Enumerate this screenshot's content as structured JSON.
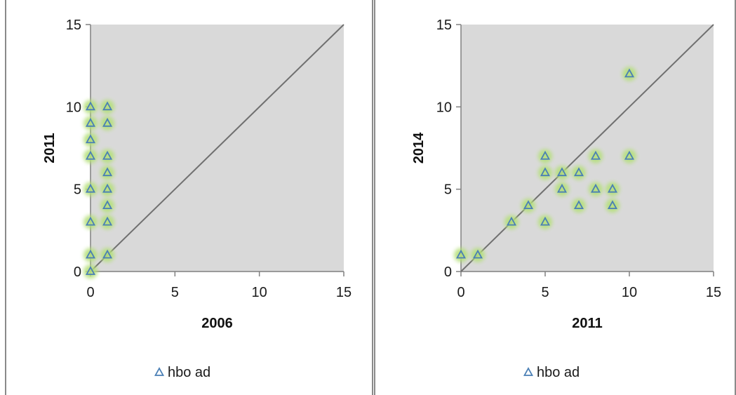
{
  "chart_data": [
    {
      "type": "scatter",
      "xlabel": "2006",
      "ylabel": "2011",
      "xlim": [
        0,
        15
      ],
      "ylim": [
        0,
        15
      ],
      "xticks": [
        0,
        5,
        10,
        15
      ],
      "yticks": [
        0,
        5,
        10,
        15
      ],
      "grid": false,
      "legend_position": "bottom",
      "reference_line": "y = x",
      "plot_background": "#d9d9d9",
      "marker_color": "#4a7fb5",
      "glow_color": "#b5e07a",
      "series": [
        {
          "name": "hbo ad",
          "marker": "triangle",
          "points": [
            [
              0,
              10
            ],
            [
              0,
              9
            ],
            [
              0,
              8
            ],
            [
              0,
              7
            ],
            [
              0,
              5
            ],
            [
              0,
              3
            ],
            [
              0,
              1
            ],
            [
              0,
              0
            ],
            [
              1,
              10
            ],
            [
              1,
              9
            ],
            [
              1,
              7
            ],
            [
              1,
              6
            ],
            [
              1,
              5
            ],
            [
              1,
              4
            ],
            [
              1,
              3
            ],
            [
              1,
              1
            ]
          ]
        }
      ]
    },
    {
      "type": "scatter",
      "xlabel": "2011",
      "ylabel": "2014",
      "xlim": [
        0,
        15
      ],
      "ylim": [
        0,
        15
      ],
      "xticks": [
        0,
        5,
        10,
        15
      ],
      "yticks": [
        0,
        5,
        10,
        15
      ],
      "grid": false,
      "legend_position": "bottom",
      "reference_line": "y = x",
      "plot_background": "#d9d9d9",
      "marker_color": "#4a7fb5",
      "glow_color": "#b5e07a",
      "series": [
        {
          "name": "hbo ad",
          "marker": "triangle",
          "points": [
            [
              0,
              1
            ],
            [
              1,
              1
            ],
            [
              3,
              3
            ],
            [
              4,
              4
            ],
            [
              5,
              7
            ],
            [
              5,
              6
            ],
            [
              5,
              3
            ],
            [
              6,
              6
            ],
            [
              6,
              5
            ],
            [
              7,
              6
            ],
            [
              7,
              4
            ],
            [
              8,
              7
            ],
            [
              8,
              5
            ],
            [
              9,
              5
            ],
            [
              9,
              4
            ],
            [
              10,
              12
            ],
            [
              10,
              7
            ]
          ]
        }
      ]
    }
  ]
}
